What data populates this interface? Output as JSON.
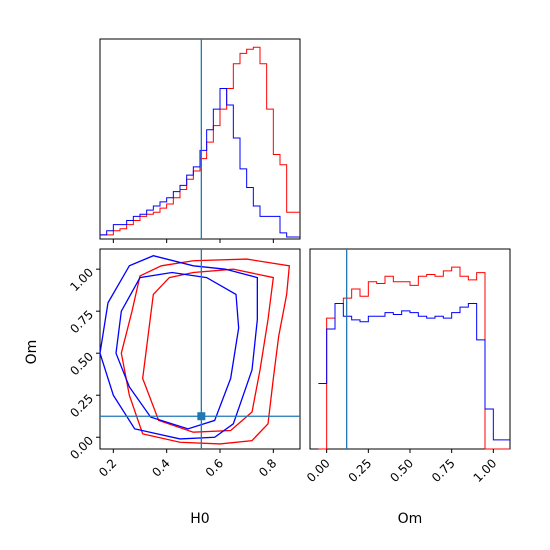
{
  "colors": {
    "series_a": "#ff0000",
    "series_b": "#0000ff",
    "truth": "#1f77b4",
    "frame": "#000000"
  },
  "chart_data": [
    {
      "panel": "marginal-top-left",
      "type": "histogram",
      "xlim": [
        0.15,
        0.9
      ],
      "bin_edges": [
        0.15,
        0.175,
        0.2,
        0.225,
        0.25,
        0.275,
        0.3,
        0.325,
        0.35,
        0.375,
        0.4,
        0.425,
        0.45,
        0.475,
        0.5,
        0.525,
        0.55,
        0.575,
        0.6,
        0.625,
        0.65,
        0.675,
        0.7,
        0.725,
        0.75,
        0.775,
        0.8,
        0.825,
        0.85,
        0.875,
        0.9
      ],
      "series": [
        {
          "color": "red",
          "values": [
            0.01,
            0.01,
            0.03,
            0.04,
            0.06,
            0.08,
            0.1,
            0.11,
            0.12,
            0.14,
            0.16,
            0.19,
            0.23,
            0.28,
            0.32,
            0.38,
            0.46,
            0.54,
            0.62,
            0.72,
            0.84,
            0.89,
            0.91,
            0.92,
            0.84,
            0.62,
            0.4,
            0.35,
            0.12,
            0.12
          ]
        },
        {
          "color": "blue",
          "values": [
            0.01,
            0.03,
            0.06,
            0.06,
            0.08,
            0.1,
            0.11,
            0.13,
            0.15,
            0.17,
            0.19,
            0.22,
            0.25,
            0.3,
            0.34,
            0.42,
            0.52,
            0.62,
            0.72,
            0.64,
            0.48,
            0.33,
            0.24,
            0.15,
            0.1,
            0.1,
            0.1,
            0.02,
            0,
            0
          ]
        }
      ],
      "truth_x": 0.53
    },
    {
      "panel": "joint-H0-Om",
      "type": "contour",
      "xlabel": "H0",
      "ylabel": "Om",
      "xlim": [
        0.15,
        0.9
      ],
      "ylim": [
        -0.07,
        1.12
      ],
      "xticks": [
        "0.2",
        "0.4",
        "0.6",
        "0.8"
      ],
      "yticks": [
        "0.00",
        "0.25",
        "0.50",
        "0.75",
        "1.00"
      ],
      "truth": [
        0.53,
        0.125
      ],
      "contours": [
        {
          "color": "red",
          "level": "outer",
          "points": [
            [
              0.31,
              0.02
            ],
            [
              0.45,
              -0.03
            ],
            [
              0.6,
              -0.04
            ],
            [
              0.72,
              -0.02
            ],
            [
              0.78,
              0.08
            ],
            [
              0.8,
              0.35
            ],
            [
              0.82,
              0.6
            ],
            [
              0.85,
              0.85
            ],
            [
              0.86,
              1.02
            ],
            [
              0.7,
              1.06
            ],
            [
              0.5,
              1.05
            ],
            [
              0.38,
              1.02
            ],
            [
              0.3,
              0.96
            ],
            [
              0.27,
              0.75
            ],
            [
              0.23,
              0.5
            ],
            [
              0.26,
              0.25
            ]
          ]
        },
        {
          "color": "red",
          "level": "inner",
          "points": [
            [
              0.37,
              0.1
            ],
            [
              0.5,
              0.03
            ],
            [
              0.64,
              0.04
            ],
            [
              0.72,
              0.15
            ],
            [
              0.75,
              0.4
            ],
            [
              0.78,
              0.7
            ],
            [
              0.8,
              0.95
            ],
            [
              0.65,
              1.0
            ],
            [
              0.5,
              0.98
            ],
            [
              0.41,
              0.95
            ],
            [
              0.35,
              0.85
            ],
            [
              0.33,
              0.6
            ],
            [
              0.31,
              0.35
            ]
          ]
        },
        {
          "color": "blue",
          "level": "outer",
          "points": [
            [
              0.2,
              0.25
            ],
            [
              0.28,
              0.05
            ],
            [
              0.45,
              -0.01
            ],
            [
              0.58,
              0.0
            ],
            [
              0.65,
              0.08
            ],
            [
              0.72,
              0.4
            ],
            [
              0.74,
              0.7
            ],
            [
              0.74,
              0.95
            ],
            [
              0.62,
              1.0
            ],
            [
              0.5,
              1.02
            ],
            [
              0.35,
              1.08
            ],
            [
              0.26,
              1.02
            ],
            [
              0.18,
              0.8
            ],
            [
              0.15,
              0.5
            ]
          ]
        },
        {
          "color": "blue",
          "level": "inner",
          "points": [
            [
              0.26,
              0.3
            ],
            [
              0.34,
              0.12
            ],
            [
              0.48,
              0.05
            ],
            [
              0.58,
              0.1
            ],
            [
              0.64,
              0.35
            ],
            [
              0.67,
              0.65
            ],
            [
              0.66,
              0.85
            ],
            [
              0.55,
              0.95
            ],
            [
              0.42,
              0.98
            ],
            [
              0.3,
              0.95
            ],
            [
              0.23,
              0.75
            ],
            [
              0.21,
              0.5
            ]
          ]
        }
      ]
    },
    {
      "panel": "marginal-bottom-right",
      "type": "histogram",
      "xlabel": "Om",
      "xlim": [
        -0.1,
        1.1
      ],
      "xticks": [
        "0.00",
        "0.25",
        "0.50",
        "0.75",
        "1.00"
      ],
      "bin_edges": [
        -0.05,
        0.0,
        0.05,
        0.1,
        0.15,
        0.2,
        0.25,
        0.3,
        0.35,
        0.4,
        0.45,
        0.5,
        0.55,
        0.6,
        0.65,
        0.7,
        0.75,
        0.8,
        0.85,
        0.9,
        0.95,
        1.0,
        1.05,
        1.1
      ],
      "series": [
        {
          "color": "red",
          "values": [
            0.0,
            0.72,
            0.8,
            0.83,
            0.88,
            0.84,
            0.92,
            0.91,
            0.95,
            0.92,
            0.92,
            0.9,
            0.95,
            0.96,
            0.95,
            0.98,
            1.0,
            0.95,
            0.93,
            0.97,
            0.0,
            0.0,
            0.0
          ]
        },
        {
          "color": "blue",
          "values": [
            0.36,
            0.66,
            0.8,
            0.73,
            0.71,
            0.7,
            0.73,
            0.73,
            0.75,
            0.74,
            0.76,
            0.75,
            0.73,
            0.72,
            0.73,
            0.72,
            0.75,
            0.78,
            0.8,
            0.6,
            0.22,
            0.05,
            0.05
          ]
        }
      ],
      "truth_x": 0.12
    }
  ]
}
